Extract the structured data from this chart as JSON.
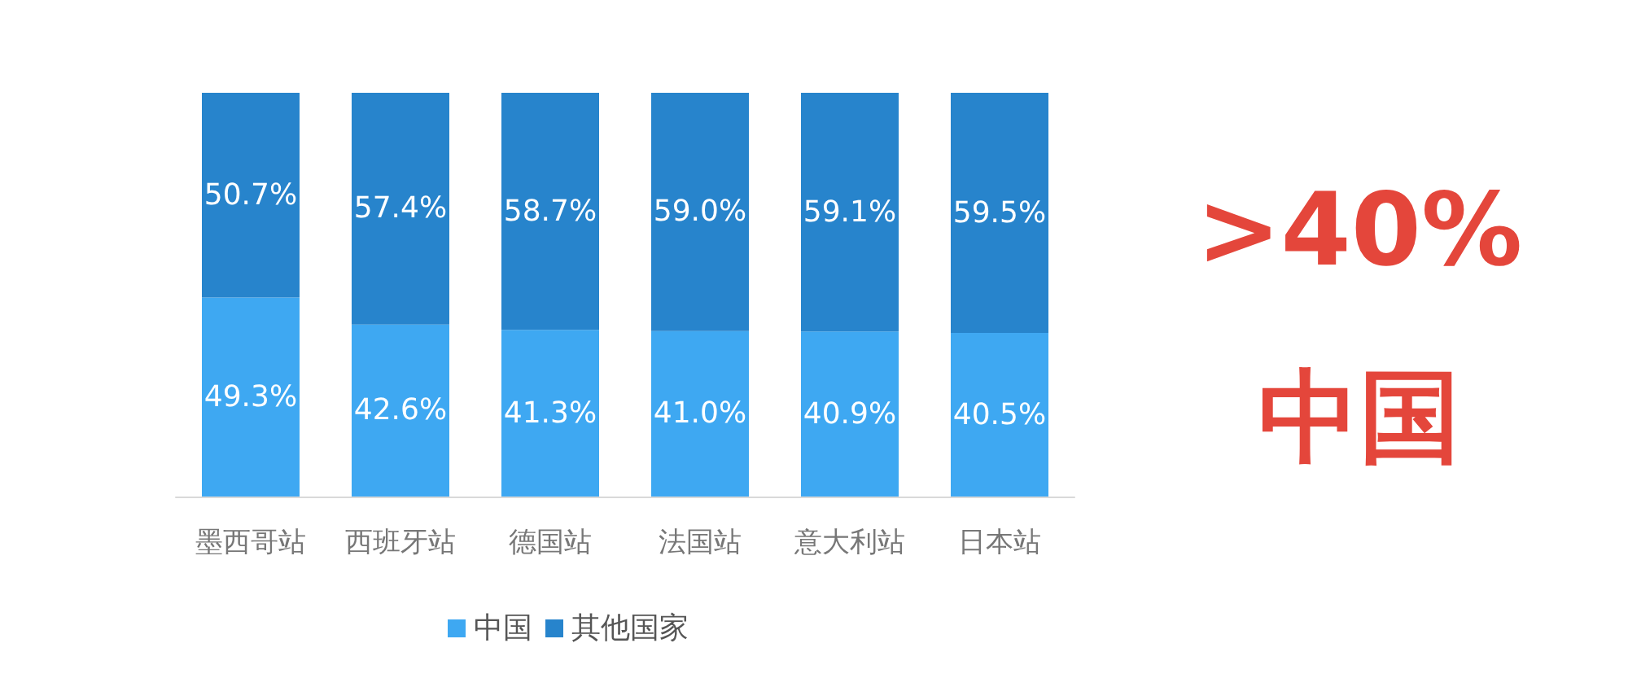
{
  "chart_data": {
    "type": "bar",
    "stacked": true,
    "legend": "bottom",
    "categories": [
      "墨西哥站",
      "西班牙站",
      "德国站",
      "法国站",
      "意大利站",
      "日本站"
    ],
    "series": [
      {
        "name": "中国",
        "color": "#3ea8f2",
        "values": [
          49.3,
          42.6,
          41.3,
          41.0,
          40.9,
          40.5
        ],
        "value_labels": [
          "49.3%",
          "42.6%",
          "41.3%",
          "41.0%",
          "40.9%",
          "40.5%"
        ]
      },
      {
        "name": "其他国家",
        "color": "#2784cc",
        "values": [
          50.7,
          57.4,
          58.7,
          59.0,
          59.1,
          59.5
        ],
        "value_labels": [
          "50.7%",
          "57.4%",
          "58.7%",
          "59.0%",
          "59.1%",
          "59.5%"
        ]
      }
    ],
    "annotations": [
      ">40%",
      "中国"
    ]
  }
}
